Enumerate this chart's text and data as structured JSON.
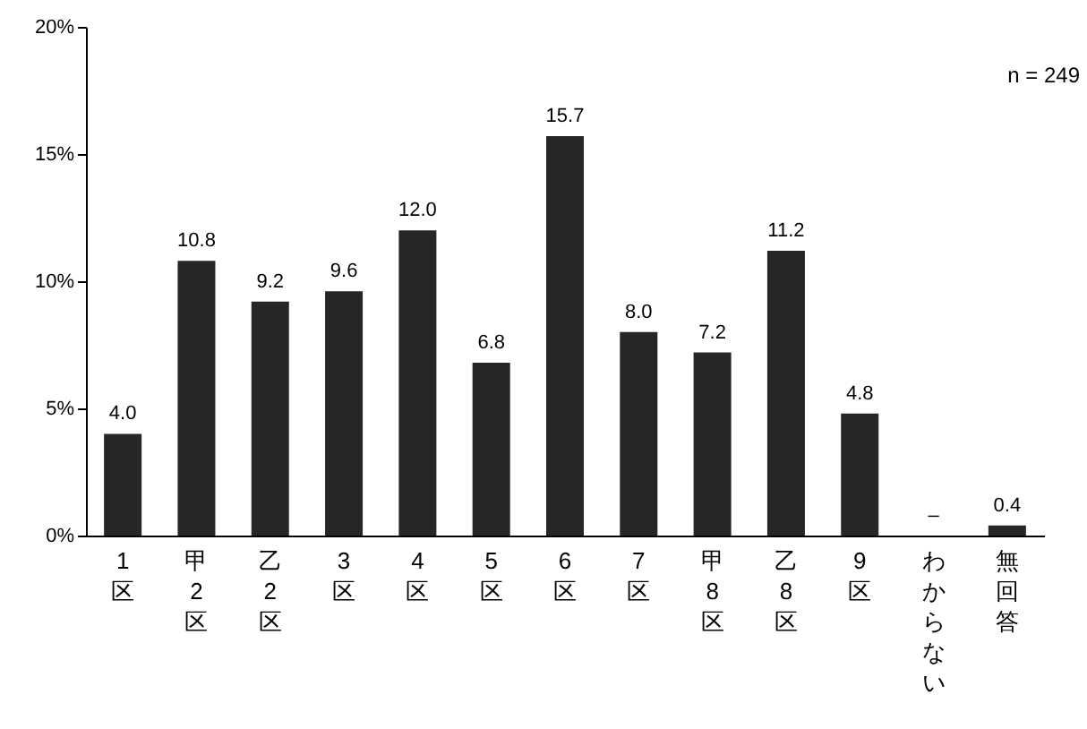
{
  "chart_data": {
    "type": "bar",
    "categories": [
      "1区",
      "甲2区",
      "乙2区",
      "3区",
      "4区",
      "5区",
      "6区",
      "7区",
      "甲8区",
      "乙8区",
      "9区",
      "わからない",
      "無回答"
    ],
    "values": [
      4.0,
      10.8,
      9.2,
      9.6,
      12.0,
      6.8,
      15.7,
      8.0,
      7.2,
      11.2,
      4.8,
      0,
      0.4
    ],
    "value_labels": [
      "4.0",
      "10.8",
      "9.2",
      "9.6",
      "12.0",
      "6.8",
      "15.7",
      "8.0",
      "7.2",
      "11.2",
      "4.8",
      "–",
      "0.4"
    ],
    "color": "#262626",
    "ylim": [
      0,
      20
    ],
    "yticks": [
      {
        "value": 0,
        "label": "0%"
      },
      {
        "value": 5,
        "label": "5%"
      },
      {
        "value": 10,
        "label": "10%"
      },
      {
        "value": 15,
        "label": "15%"
      },
      {
        "value": 20,
        "label": "20%"
      }
    ],
    "grid": false,
    "annotations": [
      "n = 249"
    ]
  }
}
